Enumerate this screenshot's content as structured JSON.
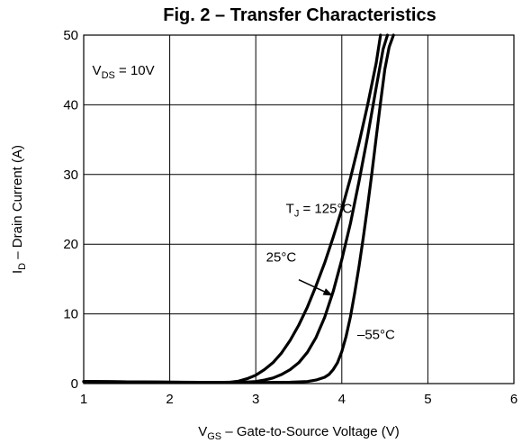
{
  "chart_data": {
    "type": "line",
    "title": "Fig. 2 – Transfer Characteristics",
    "xlabel": {
      "main": "V",
      "sub": "GS",
      "rest": " – Gate-to-Source Voltage (V)"
    },
    "ylabel": {
      "main": "I",
      "sub": "D",
      "rest": " – Drain Current (A)"
    },
    "xlim": [
      1,
      6
    ],
    "ylim": [
      0,
      50
    ],
    "xticks": [
      1,
      2,
      3,
      4,
      5,
      6
    ],
    "yticks": [
      0,
      10,
      20,
      30,
      40,
      50
    ],
    "grid": true,
    "condition": {
      "main": "V",
      "sub": "DS",
      "rest": " = 10V"
    },
    "series": [
      {
        "name": "T_J = 125°C",
        "x": [
          1.0,
          2.0,
          2.5,
          2.7,
          2.8,
          2.9,
          3.0,
          3.1,
          3.2,
          3.3,
          3.4,
          3.5,
          3.6,
          3.7,
          3.8,
          3.9,
          4.0,
          4.1,
          4.2,
          4.3,
          4.4,
          4.45
        ],
        "y": [
          0.3,
          0.2,
          0.15,
          0.2,
          0.35,
          0.7,
          1.2,
          2.0,
          3.0,
          4.4,
          6.2,
          8.4,
          11.0,
          14.0,
          17.3,
          21.0,
          25.0,
          29.5,
          34.5,
          40.0,
          46.0,
          50.0
        ]
      },
      {
        "name": "25°C",
        "x": [
          1.0,
          2.0,
          2.8,
          3.0,
          3.1,
          3.2,
          3.3,
          3.4,
          3.5,
          3.6,
          3.7,
          3.8,
          3.9,
          4.0,
          4.1,
          4.2,
          4.3,
          4.4,
          4.48,
          4.53
        ],
        "y": [
          0.3,
          0.2,
          0.15,
          0.3,
          0.5,
          0.8,
          1.3,
          2.0,
          3.0,
          4.5,
          6.6,
          9.5,
          13.2,
          17.8,
          23.0,
          29.0,
          35.5,
          42.5,
          48.0,
          50.0
        ]
      },
      {
        "name": "–55°C",
        "x": [
          1.0,
          2.0,
          3.0,
          3.4,
          3.6,
          3.7,
          3.8,
          3.85,
          3.9,
          3.95,
          4.0,
          4.05,
          4.1,
          4.15,
          4.2,
          4.25,
          4.3,
          4.35,
          4.4,
          4.45,
          4.5,
          4.55,
          4.6
        ],
        "y": [
          0.3,
          0.2,
          0.15,
          0.2,
          0.3,
          0.5,
          0.9,
          1.3,
          2.0,
          3.0,
          4.6,
          6.8,
          9.6,
          13.0,
          16.8,
          21.0,
          25.5,
          30.3,
          35.3,
          40.3,
          45.1,
          48.3,
          50.0
        ]
      }
    ],
    "series_labels": [
      {
        "main": "T",
        "sub": "J",
        "rest": " = 125°C",
        "x": 3.35,
        "y": 24.5
      },
      {
        "main": "",
        "sub": "",
        "rest": "25°C",
        "x": 3.12,
        "y": 17.5
      },
      {
        "main": "",
        "sub": "",
        "rest": "–55°C",
        "x": 4.18,
        "y": 6.4
      }
    ],
    "arrow": {
      "from": [
        3.5,
        14.9
      ],
      "to": [
        3.9,
        12.6
      ]
    }
  }
}
